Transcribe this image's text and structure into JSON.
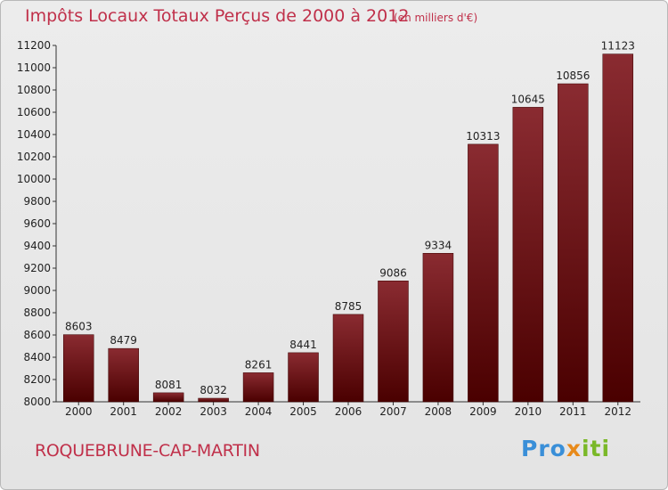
{
  "chart_data": {
    "type": "bar",
    "title": "Impôts Locaux Totaux Perçus de 2000 à 2012",
    "subtitle": "(en milliers d'€)",
    "categories": [
      "2000",
      "2001",
      "2002",
      "2003",
      "2004",
      "2005",
      "2006",
      "2007",
      "2008",
      "2009",
      "2010",
      "2011",
      "2012"
    ],
    "values": [
      8603,
      8479,
      8081,
      8032,
      8261,
      8441,
      8785,
      9086,
      9334,
      10313,
      10645,
      10856,
      11123
    ],
    "ylim": [
      8000,
      11200
    ],
    "yticks": [
      8000,
      8200,
      8400,
      8600,
      8800,
      9000,
      9200,
      9400,
      9600,
      9800,
      10000,
      10200,
      10400,
      10600,
      10800,
      11000,
      11200
    ],
    "xlabel": "",
    "ylabel": "",
    "grid": false,
    "bar_color_top": "#8a2b31",
    "bar_color_bottom": "#4a0000"
  },
  "footer": {
    "place": "ROQUEBRUNE-CAP-MARTIN",
    "logo_part1": "Pro",
    "logo_part2": "x",
    "logo_part3": "iti"
  },
  "colors": {
    "accent": "#c0304a"
  }
}
